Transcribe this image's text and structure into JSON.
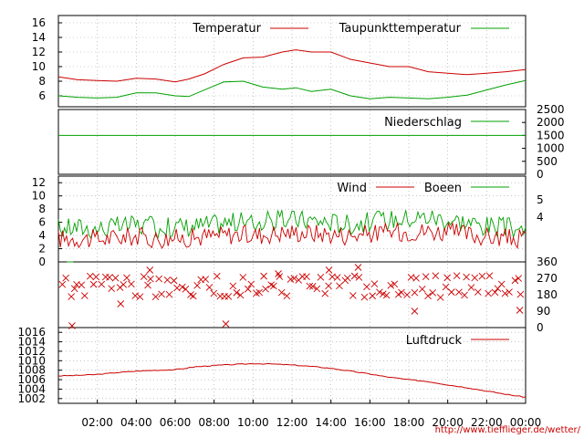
{
  "colors": {
    "red": "#cc0000",
    "green": "#00a000",
    "grid": "#a0a0a0",
    "link": "#cc0000"
  },
  "footer": {
    "url": "http://www.tiefflieger.de/wetter/"
  },
  "chart_data": [
    {
      "id": "temp",
      "type": "line",
      "ylim": [
        4.5,
        17
      ],
      "yticks": [
        6,
        8,
        10,
        12,
        14,
        16
      ],
      "series": [
        {
          "name": "Temperatur",
          "color": "red",
          "x": [
            0,
            1,
            2,
            3,
            4,
            5,
            6,
            6.7,
            7.5,
            8.5,
            9.5,
            10.5,
            11.5,
            12.2,
            13,
            14,
            15,
            16,
            17,
            18,
            19,
            20,
            21,
            22,
            23,
            24
          ],
          "y": [
            8.6,
            8.2,
            8.1,
            8.0,
            8.4,
            8.3,
            7.9,
            8.3,
            9.0,
            10.3,
            11.2,
            11.3,
            12.0,
            12.3,
            12.0,
            12.0,
            11.0,
            10.5,
            10.0,
            10.0,
            9.3,
            9.1,
            8.9,
            9.1,
            9.3,
            9.6
          ]
        },
        {
          "name": "Taupunkttemperatur",
          "color": "green",
          "x": [
            0,
            1,
            2,
            3,
            4,
            5,
            6,
            6.7,
            7.5,
            8.5,
            9.5,
            10.5,
            11.5,
            12.2,
            13,
            14,
            15,
            16,
            17,
            18,
            19,
            20,
            21,
            22,
            23,
            24
          ],
          "y": [
            6.0,
            5.8,
            5.7,
            5.8,
            6.4,
            6.4,
            6.0,
            5.9,
            6.8,
            7.9,
            8.0,
            7.2,
            6.9,
            7.1,
            6.6,
            6.9,
            6.0,
            5.6,
            5.8,
            5.7,
            5.6,
            5.8,
            6.1,
            6.8,
            7.5,
            8.1
          ]
        }
      ]
    },
    {
      "id": "rain",
      "type": "line",
      "ylim": [
        0,
        2500
      ],
      "yticks": [
        0,
        500,
        1000,
        1500,
        2000,
        2500
      ],
      "series": [
        {
          "name": "Niederschlag",
          "color": "green",
          "x": [
            0,
            24
          ],
          "y": [
            1500,
            1500
          ]
        }
      ]
    },
    {
      "id": "wind",
      "type": "line",
      "ylim": [
        0,
        13
      ],
      "yticks": [
        0,
        2,
        4,
        6,
        8,
        10,
        12
      ],
      "y2ticks": [
        "4",
        "5"
      ],
      "series": [
        {
          "name": "Wind",
          "color": "red",
          "x": [
            0,
            1,
            2,
            3,
            4,
            5,
            6,
            7,
            8,
            9,
            10,
            11,
            12,
            13,
            14,
            15,
            16,
            17,
            18,
            19,
            20,
            21,
            22,
            23,
            24
          ],
          "y": [
            3.5,
            3.6,
            3.4,
            3.7,
            3.9,
            3.5,
            3.6,
            3.7,
            4.0,
            4.2,
            4.0,
            4.3,
            4.5,
            4.4,
            4.2,
            4.0,
            4.3,
            4.5,
            4.6,
            4.7,
            4.5,
            4.2,
            3.8,
            3.6,
            3.4
          ]
        },
        {
          "name": "Boeen",
          "color": "green",
          "x": [
            0,
            1,
            2,
            3,
            4,
            5,
            6,
            7,
            8,
            9,
            10,
            11,
            12,
            13,
            14,
            15,
            16,
            17,
            18,
            19,
            20,
            21,
            22,
            23,
            24
          ],
          "y": [
            4.8,
            4.9,
            4.7,
            5.0,
            5.3,
            4.9,
            5.0,
            5.1,
            5.4,
            5.7,
            5.6,
            5.9,
            6.1,
            6.0,
            5.7,
            5.4,
            5.8,
            6.1,
            6.3,
            6.5,
            6.1,
            5.7,
            5.1,
            4.9,
            4.6
          ]
        }
      ]
    },
    {
      "id": "dir",
      "type": "scatter",
      "ylim": [
        0,
        360
      ],
      "y2ticks": [
        "0",
        "90",
        "180",
        "270",
        "360"
      ],
      "bands": [
        180,
        225,
        270
      ],
      "outliers": [
        {
          "x": 0.7,
          "y": 10
        },
        {
          "x": 3.2,
          "y": 130
        },
        {
          "x": 4.7,
          "y": 315
        },
        {
          "x": 8.6,
          "y": 20
        },
        {
          "x": 11.3,
          "y": 295
        },
        {
          "x": 13.9,
          "y": 315
        },
        {
          "x": 15.4,
          "y": 330
        },
        {
          "x": 18.3,
          "y": 90
        },
        {
          "x": 23.7,
          "y": 95
        }
      ]
    },
    {
      "id": "press",
      "type": "line",
      "ylim": [
        1001,
        1017
      ],
      "yticks": [
        1002,
        1004,
        1006,
        1008,
        1010,
        1012,
        1014,
        1016
      ],
      "series": [
        {
          "name": "Luftdruck",
          "color": "red",
          "x": [
            0,
            1,
            2,
            3,
            4,
            5,
            6,
            7,
            8,
            9,
            10,
            11,
            12,
            13,
            14,
            15,
            16,
            17,
            18,
            19,
            20,
            21,
            22,
            23,
            24
          ],
          "y": [
            1006.8,
            1006.9,
            1007.1,
            1007.5,
            1007.8,
            1008.0,
            1008.1,
            1008.7,
            1009.0,
            1009.2,
            1009.4,
            1009.3,
            1009.1,
            1008.8,
            1008.4,
            1007.8,
            1007.2,
            1006.5,
            1006.0,
            1005.6,
            1004.9,
            1004.3,
            1003.6,
            1002.9,
            1002.3
          ]
        }
      ]
    }
  ],
  "time_ticks": [
    "02:00",
    "04:00",
    "06:00",
    "08:00",
    "10:00",
    "12:00",
    "14:00",
    "16:00",
    "18:00",
    "20:00",
    "22:00",
    "00:00"
  ]
}
